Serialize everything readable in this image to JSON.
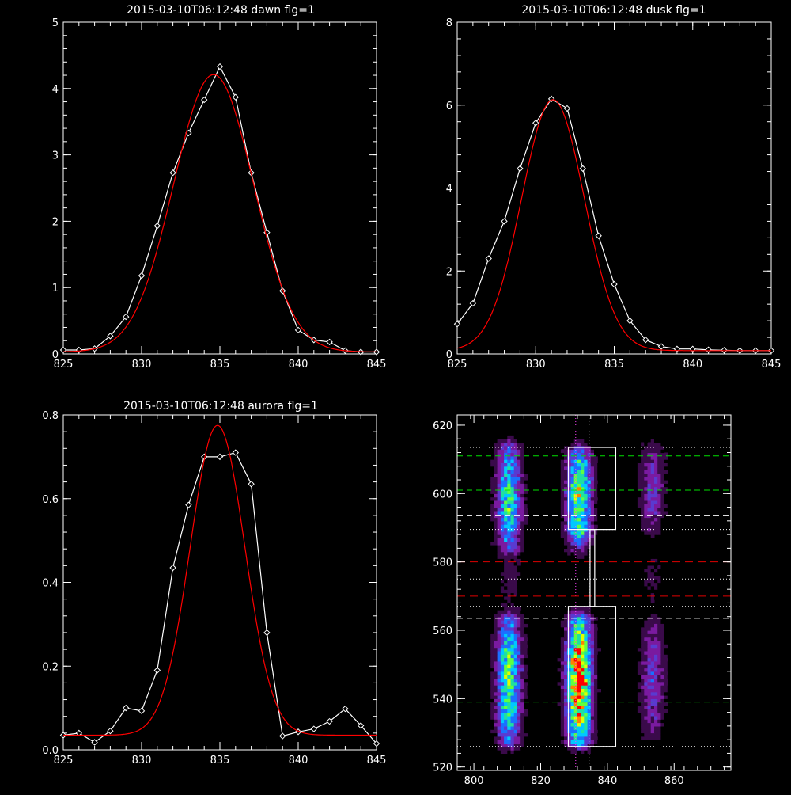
{
  "chart_data": [
    {
      "type": "line",
      "title": "2015-03-10T06:12:48 dawn flg=1",
      "xlim": [
        825,
        845
      ],
      "ylim": [
        0,
        5
      ],
      "xticks": [
        825,
        830,
        835,
        840,
        845
      ],
      "yticks": [
        0,
        1,
        2,
        3,
        4,
        5
      ],
      "series": [
        {
          "color": "#ffffff",
          "markers": "diamond",
          "x": [
            825,
            826,
            827,
            828,
            829,
            830,
            831,
            832,
            833,
            834,
            835,
            836,
            837,
            838,
            839,
            840,
            841,
            842,
            843,
            844,
            845
          ],
          "y": [
            0.06,
            0.06,
            0.08,
            0.27,
            0.56,
            1.18,
            1.93,
            2.73,
            3.33,
            3.83,
            4.33,
            3.87,
            2.73,
            1.83,
            0.95,
            0.36,
            0.21,
            0.18,
            0.05,
            0.03,
            0.03
          ]
        },
        {
          "color": "#ff0000",
          "fit": "gaussian",
          "peak": 4.18,
          "center": 834.6,
          "sigma": 2.55,
          "baseline": 0.03
        }
      ]
    },
    {
      "type": "line",
      "title": "2015-03-10T06:12:48 dusk flg=1",
      "xlim": [
        825,
        845
      ],
      "ylim": [
        0,
        8
      ],
      "xticks": [
        825,
        830,
        835,
        840,
        845
      ],
      "yticks": [
        0,
        2,
        4,
        6,
        8
      ],
      "series": [
        {
          "color": "#ffffff",
          "markers": "diamond",
          "x": [
            825,
            826,
            827,
            828,
            829,
            830,
            831,
            832,
            833,
            834,
            835,
            836,
            837,
            838,
            839,
            840,
            841,
            842,
            843,
            844,
            845
          ],
          "y": [
            0.72,
            1.22,
            2.3,
            3.2,
            4.47,
            5.57,
            6.15,
            5.92,
            4.47,
            2.85,
            1.68,
            0.8,
            0.34,
            0.18,
            0.12,
            0.12,
            0.1,
            0.09,
            0.08,
            0.08,
            0.08
          ]
        },
        {
          "color": "#ff0000",
          "fit": "gaussian",
          "peak": 6.05,
          "center": 831.1,
          "sigma": 2.0,
          "baseline": 0.08
        }
      ]
    },
    {
      "type": "line",
      "title": "2015-03-10T06:12:48 aurora flg=1",
      "xlim": [
        825,
        845
      ],
      "ylim": [
        0,
        0.8
      ],
      "xticks": [
        825,
        830,
        835,
        840,
        845
      ],
      "yticks": [
        0.0,
        0.2,
        0.4,
        0.6,
        0.8
      ],
      "series": [
        {
          "color": "#ffffff",
          "markers": "diamond",
          "x": [
            825,
            826,
            827,
            828,
            829,
            830,
            831,
            832,
            833,
            834,
            835,
            836,
            837,
            838,
            839,
            840,
            841,
            842,
            843,
            844,
            845
          ],
          "y": [
            0.035,
            0.04,
            0.018,
            0.045,
            0.1,
            0.093,
            0.19,
            0.435,
            0.585,
            0.7,
            0.7,
            0.71,
            0.635,
            0.28,
            0.033,
            0.043,
            0.05,
            0.068,
            0.098,
            0.058,
            0.015
          ]
        },
        {
          "color": "#ff0000",
          "fit": "gaussian",
          "peak": 0.74,
          "center": 834.85,
          "sigma": 1.75,
          "baseline": 0.035
        }
      ]
    },
    {
      "type": "heatmap",
      "xlim": [
        795,
        877
      ],
      "ylim": [
        519,
        623
      ],
      "xticks": [
        800,
        820,
        840,
        860
      ],
      "yticks": [
        520,
        540,
        560,
        580,
        600,
        620
      ],
      "colormap": [
        "#000000",
        "#3a0a4a",
        "#7a1aa0",
        "#5a3ad0",
        "#1a70ff",
        "#00c8ff",
        "#20e0a0",
        "#60ff40",
        "#e0ff00",
        "#ff8000",
        "#ff0000"
      ],
      "bands": [
        {
          "x": 810.5,
          "y0": 585,
          "y1": 613,
          "peak": 0.62
        },
        {
          "x": 831.5,
          "y0": 590,
          "y1": 612,
          "peak": 0.75
        },
        {
          "x": 853.5,
          "y0": 590,
          "y1": 613,
          "peak": 0.28
        },
        {
          "x": 831.5,
          "y0": 584,
          "y1": 590,
          "peak": 0.35
        },
        {
          "x": 810.5,
          "y0": 528,
          "y1": 563,
          "peak": 0.7
        },
        {
          "x": 831.5,
          "y0": 528,
          "y1": 563,
          "peak": 1.0
        },
        {
          "x": 853.5,
          "y0": 530,
          "y1": 562,
          "peak": 0.3
        },
        {
          "x": 811.0,
          "y0": 568,
          "y1": 582,
          "peak": 0.12
        },
        {
          "x": 853.5,
          "y0": 568,
          "y1": 582,
          "peak": 0.1
        }
      ],
      "boxes_white": [
        {
          "x0": 828.3,
          "x1": 842.5,
          "y0": 589.5,
          "y1": 613.5
        },
        {
          "x0": 828.3,
          "x1": 842.5,
          "y0": 526.0,
          "y1": 567.0
        },
        {
          "x0": 834.8,
          "x1": 836.2,
          "y0": 567.0,
          "y1": 589.5
        }
      ],
      "hlines_green_dashed": [
        539,
        549,
        601,
        611
      ],
      "hlines_white_dashed": [
        563.5,
        593.5
      ],
      "hlines_red_dashed": [
        570,
        580
      ],
      "hlines_dotted": [
        526,
        567,
        589.5,
        613.5,
        575
      ],
      "vlines_dotted": [
        830.5,
        834.5
      ]
    }
  ]
}
